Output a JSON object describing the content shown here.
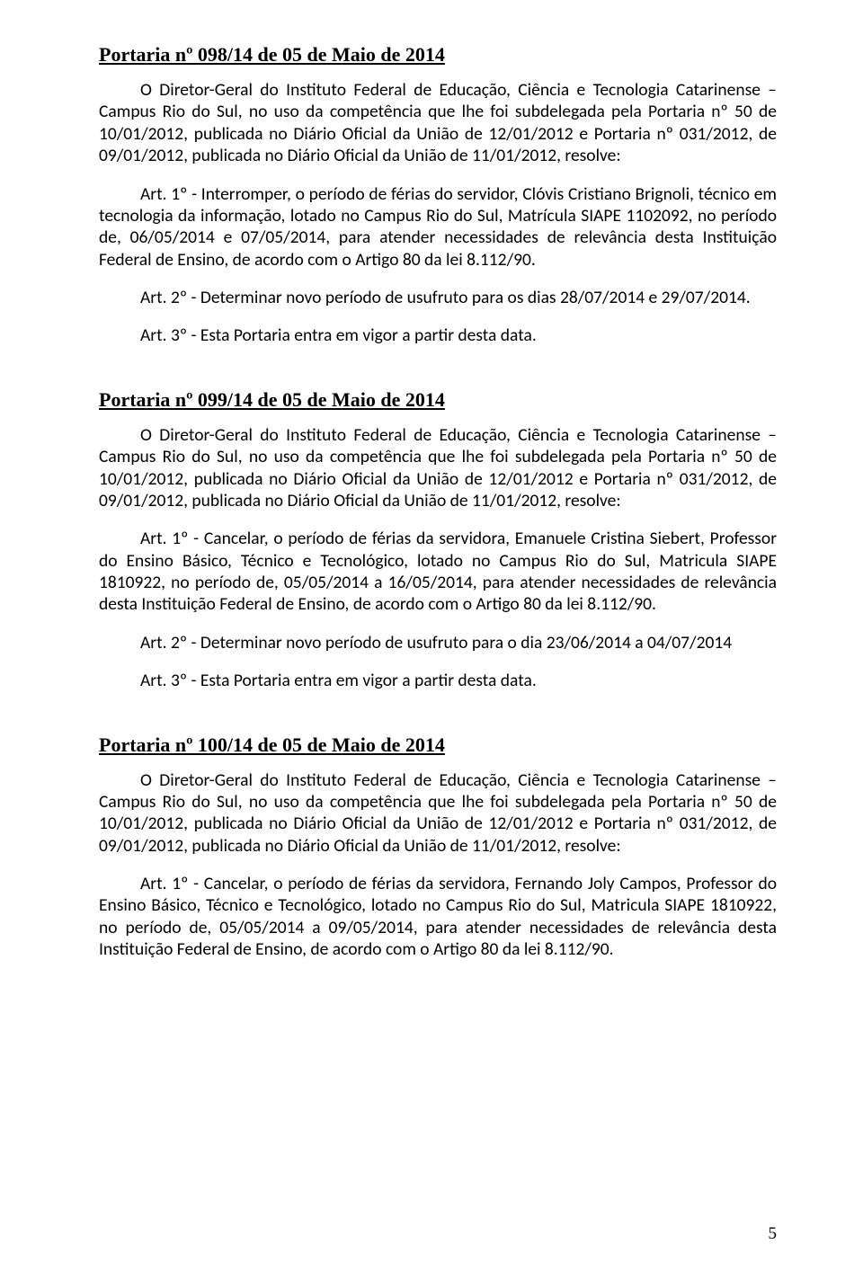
{
  "page": {
    "number": "5",
    "background_color": "#ffffff",
    "text_color": "#000000"
  },
  "portaria_098": {
    "title": "Portaria nº 098/14 de 05 de Maio de 2014",
    "intro": "O Diretor-Geral do Instituto Federal de Educação, Ciência e Tecnologia Catarinense – Campus Rio do Sul, no uso da competência que lhe foi subdelegada pela Portaria nº 50 de 10/01/2012, publicada no Diário Oficial da União de 12/01/2012 e Portaria nº 031/2012, de 09/01/2012, publicada no Diário Oficial da União de 11/01/2012, resolve:",
    "art1": "Art. 1º - Interromper, o período de férias do servidor, Clóvis Cristiano Brignoli, técnico em tecnologia da informação, lotado no Campus Rio do Sul, Matrícula SIAPE 1102092, no período de, 06/05/2014 e 07/05/2014, para atender necessidades de relevância desta Instituição Federal de Ensino, de acordo com o Artigo 80 da lei 8.112/90.",
    "art2": "Art. 2º - Determinar novo período de usufruto para os dias 28/07/2014 e 29/07/2014.",
    "art3": "Art. 3º - Esta Portaria entra em vigor a partir desta data."
  },
  "portaria_099": {
    "title": "Portaria nº 099/14 de 05 de Maio de 2014",
    "intro": "O Diretor-Geral do Instituto Federal de Educação, Ciência e Tecnologia Catarinense – Campus Rio do Sul, no uso da competência que lhe foi subdelegada pela Portaria nº 50 de 10/01/2012, publicada no Diário Oficial da União de 12/01/2012 e Portaria nº 031/2012, de 09/01/2012, publicada no Diário Oficial da União de 11/01/2012, resolve:",
    "art1": "Art. 1º - Cancelar, o período de férias da servidora, Emanuele Cristina Siebert, Professor do Ensino Básico, Técnico e Tecnológico, lotado no Campus Rio do Sul, Matricula SIAPE 1810922, no período de, 05/05/2014 a 16/05/2014, para atender necessidades de relevância desta Instituição Federal de Ensino, de acordo com o Artigo 80 da lei 8.112/90.",
    "art2": "Art. 2º - Determinar novo período de usufruto para o dia 23/06/2014 a 04/07/2014",
    "art3": "Art. 3º - Esta Portaria entra em vigor a partir desta data."
  },
  "portaria_100": {
    "title": "Portaria nº 100/14 de 05 de Maio de 2014",
    "intro": "O Diretor-Geral do Instituto Federal de Educação, Ciência e Tecnologia Catarinense – Campus Rio do Sul, no uso da competência que lhe foi subdelegada pela Portaria nº 50 de 10/01/2012, publicada no Diário Oficial da União de 12/01/2012 e Portaria nº 031/2012, de 09/01/2012, publicada no Diário Oficial da União de 11/01/2012, resolve:",
    "art1": "Art. 1º - Cancelar, o período de férias da servidora, Fernando Joly Campos, Professor do Ensino Básico, Técnico e Tecnológico, lotado no Campus Rio do Sul, Matricula SIAPE 1810922, no período de, 05/05/2014 a 09/05/2014, para atender necessidades de relevância desta Instituição Federal de Ensino, de acordo com o Artigo 80 da lei 8.112/90."
  }
}
